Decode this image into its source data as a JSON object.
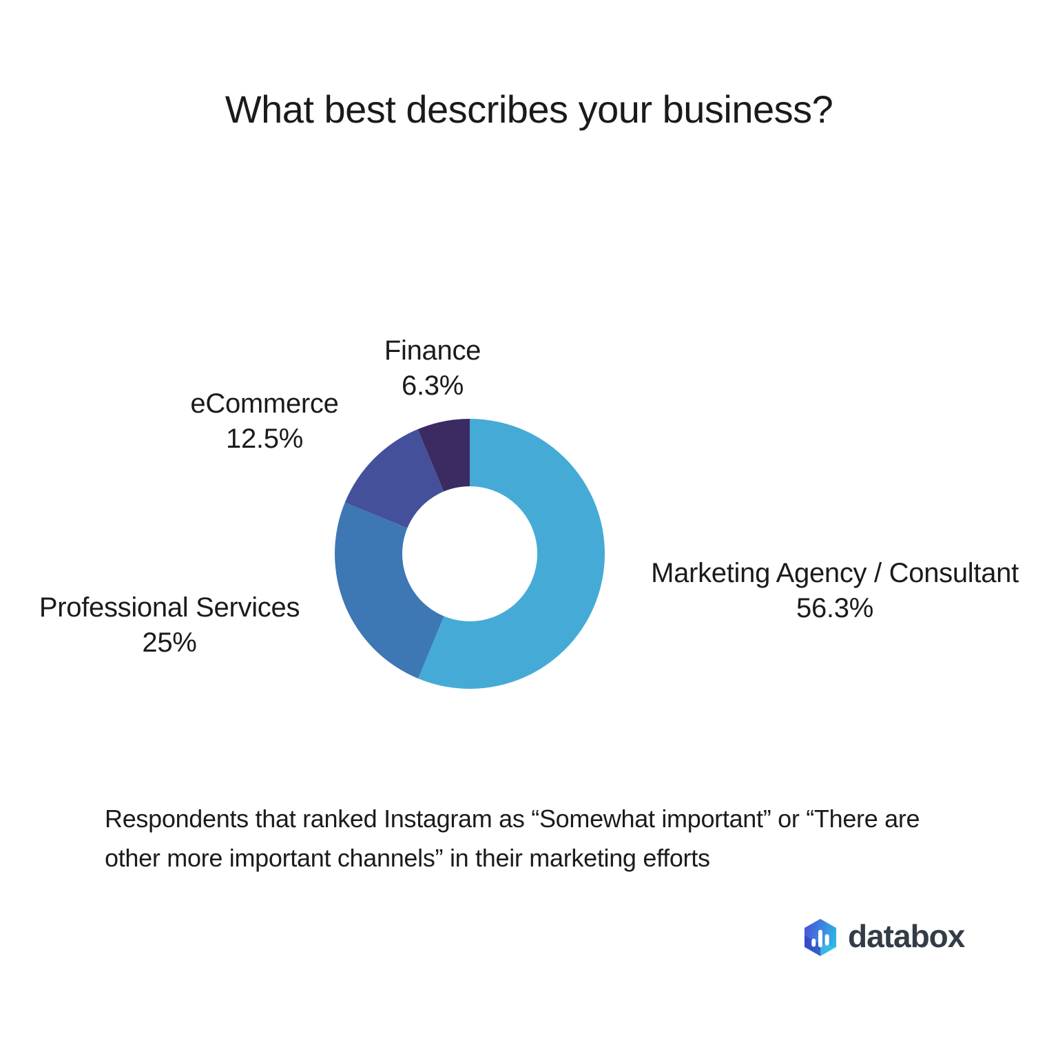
{
  "title": "What best describes your business?",
  "chart_data": {
    "type": "pie",
    "subtype": "donut",
    "title": "What best describes your business?",
    "start_angle_deg": 0,
    "direction": "clockwise",
    "inner_radius_ratio": 0.5,
    "legend_position": "outside-labels",
    "segments": [
      {
        "label": "Marketing Agency / Consultant",
        "value": 56.3,
        "display": "56.3%",
        "color": "#45ABD6"
      },
      {
        "label": "Professional Services",
        "value": 25,
        "display": "25%",
        "color": "#3D77B4"
      },
      {
        "label": "eCommerce",
        "value": 12.5,
        "display": "12.5%",
        "color": "#44519A"
      },
      {
        "label": "Finance",
        "value": 6.3,
        "display": "6.3%",
        "color": "#3C2B62"
      }
    ]
  },
  "caption": {
    "lines": [
      "Respondents that ranked Instagram as “Somewhat important” or “There are",
      "other more important channels” in their marketing efforts"
    ]
  },
  "logo": {
    "text": "databox",
    "icon_colors": {
      "gradient_start": "#4a52d9",
      "gradient_end": "#2fb7e5",
      "bars": "#ffffff"
    }
  }
}
